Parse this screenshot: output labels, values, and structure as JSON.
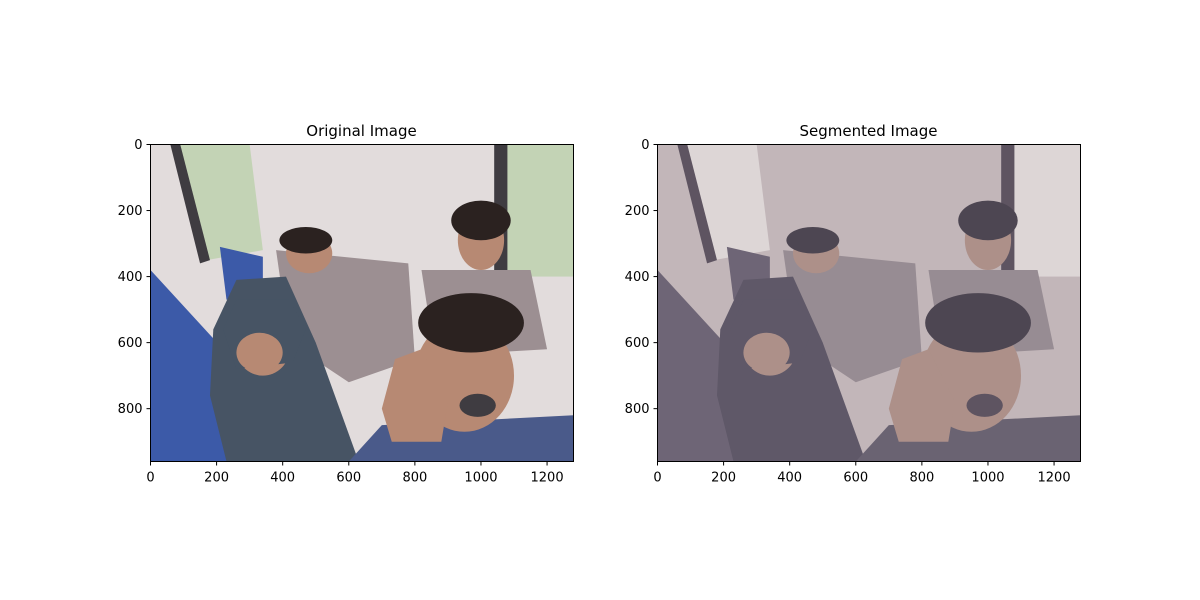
{
  "figure": {
    "background": "#ffffff"
  },
  "chart_data": [
    {
      "type": "image",
      "title": "Original Image",
      "xlabel": "",
      "ylabel": "",
      "xlim": [
        0,
        1280
      ],
      "ylim": [
        960,
        0
      ],
      "xticks": [
        0,
        200,
        400,
        600,
        800,
        1000,
        1200
      ],
      "yticks": [
        0,
        200,
        400,
        600,
        800
      ],
      "palette": {
        "wall": "#e2dcdc",
        "window": "#c3d3b5",
        "frame": "#3f3c41",
        "floor_shadow": "#4a5a8a",
        "hoodie": "#475464",
        "blue_shirt": "#3c5aa8",
        "plaid": "#9c8f92",
        "skin": "#b78973",
        "hair": "#2b2220"
      }
    },
    {
      "type": "image",
      "title": "Segmented Image",
      "xlabel": "",
      "ylabel": "",
      "xlim": [
        0,
        1280
      ],
      "ylim": [
        960,
        0
      ],
      "xticks": [
        0,
        200,
        400,
        600,
        800,
        1000,
        1200
      ],
      "yticks": [
        0,
        200,
        400,
        600,
        800
      ],
      "palette": {
        "wall": "#c2b6b9",
        "window": "#ddd6d6",
        "frame": "#5e5461",
        "floor_shadow": "#6a6372",
        "hoodie": "#5f5868",
        "blue_shirt": "#6e6576",
        "plaid": "#978c93",
        "skin": "#ad9089",
        "hair": "#4d4652"
      }
    }
  ]
}
